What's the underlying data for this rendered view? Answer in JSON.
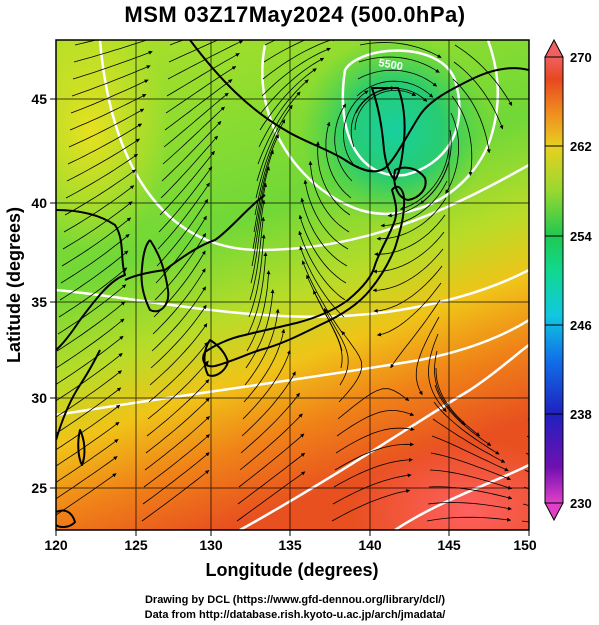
{
  "title": "MSM 03Z17May2024 (500.0hPa)",
  "map": {
    "xlabel": "Longitude (degrees)",
    "ylabel": "Latitude  (degrees)",
    "x_ticks": [
      120,
      125,
      130,
      135,
      140,
      145,
      150
    ],
    "y_ticks": [
      25,
      30,
      35,
      40,
      45
    ],
    "lon_range": [
      120,
      150
    ],
    "lat_range": [
      22.4,
      47.6
    ],
    "field": "temperature",
    "contour_label": "5500"
  },
  "colorbar": {
    "ticks": [
      270,
      262,
      254,
      246,
      238,
      230
    ],
    "range": [
      230,
      270
    ],
    "colors": [
      "#e040c8",
      "#6010b0",
      "#2020c0",
      "#1060e0",
      "#10b8e0",
      "#10d8a0",
      "#20c860",
      "#7cd838",
      "#c8e028",
      "#f0c020",
      "#f08020",
      "#e84020",
      "#f06060"
    ]
  },
  "credits": {
    "line1": "Drawing by DCL (https://www.gfd-dennou.org/library/dcl/)",
    "line2": "Data from http://database.rish.kyoto-u.ac.jp/arch/jmadata/"
  }
}
